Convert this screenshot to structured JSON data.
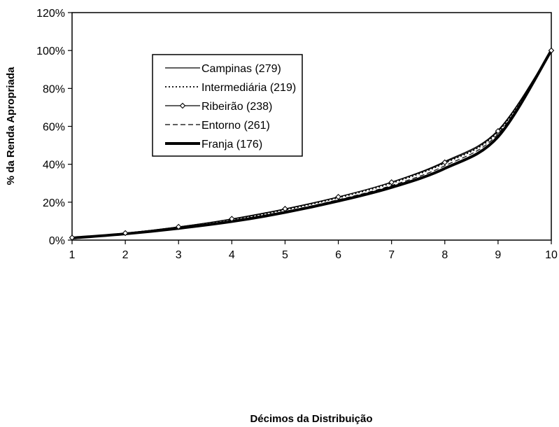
{
  "chart_data": {
    "type": "line",
    "title": "",
    "xlabel": "Décimos da Distribuição",
    "ylabel": "% da Renda Apropriada",
    "x": [
      1,
      2,
      3,
      4,
      5,
      6,
      7,
      8,
      9,
      10
    ],
    "xlim": [
      1,
      10
    ],
    "ylim": [
      0,
      120
    ],
    "x_ticks": [
      "1",
      "2",
      "3",
      "4",
      "5",
      "6",
      "7",
      "8",
      "9",
      "10"
    ],
    "y_ticks": [
      "0%",
      "20%",
      "40%",
      "60%",
      "80%",
      "100%",
      "120%"
    ],
    "grid": false,
    "legend_position": "top-left",
    "series": [
      {
        "name": "Campinas (279)",
        "style": "solid-thin",
        "values": [
          1.3,
          3.7,
          7.0,
          11.0,
          16.3,
          22.7,
          30.6,
          41.5,
          58.0,
          100
        ]
      },
      {
        "name": "Intermediária (219)",
        "style": "dotted",
        "values": [
          1.2,
          3.6,
          6.8,
          10.7,
          15.9,
          22.3,
          30.0,
          40.6,
          57.0,
          100
        ]
      },
      {
        "name": "Ribeirão (238)",
        "style": "solid-diamond",
        "values": [
          1.3,
          3.7,
          7.0,
          11.2,
          16.5,
          22.8,
          30.5,
          41.0,
          57.5,
          100
        ]
      },
      {
        "name": "Entorno (261)",
        "style": "dashed",
        "values": [
          1.2,
          3.5,
          6.5,
          10.3,
          15.2,
          21.3,
          28.8,
          39.2,
          56.0,
          100
        ]
      },
      {
        "name": "Franja (176)",
        "style": "solid-thick",
        "values": [
          1.1,
          3.3,
          6.2,
          9.8,
          14.6,
          20.6,
          27.8,
          37.8,
          54.5,
          100
        ]
      }
    ]
  }
}
